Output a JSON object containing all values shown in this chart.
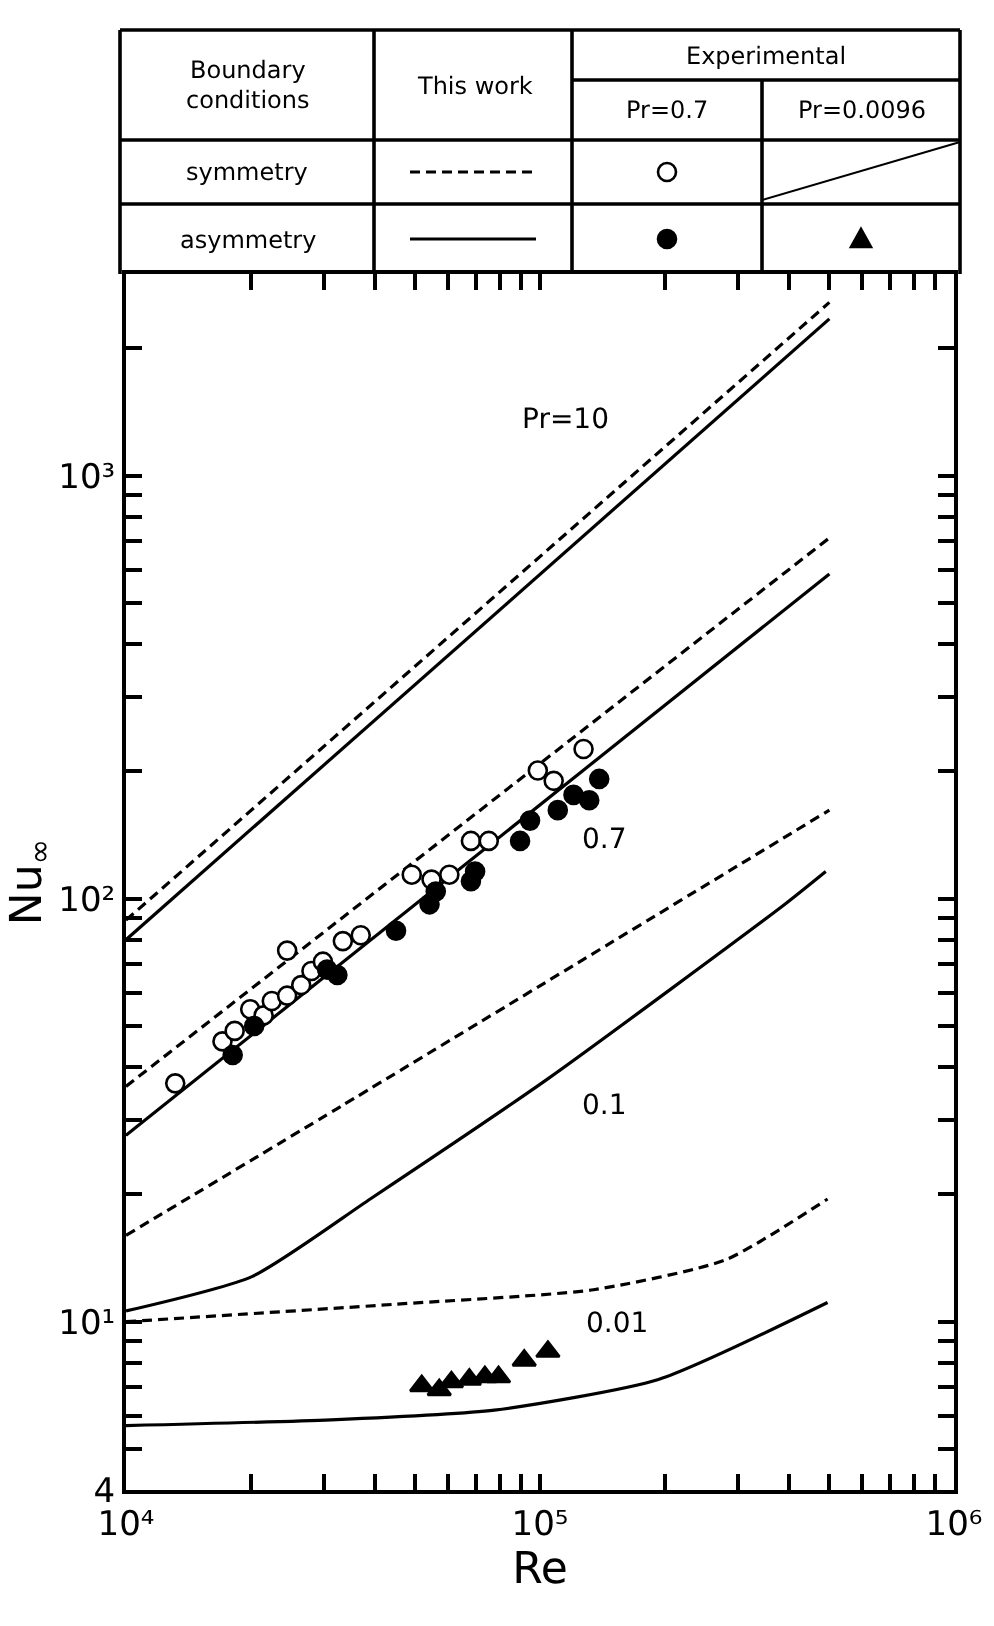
{
  "chart_data": {
    "type": "line",
    "xlabel": "Re",
    "ylabel": "Nu$_{∞}$",
    "log": "xy",
    "xlim": [
      10000,
      1000000
    ],
    "ylim": [
      4,
      3000
    ],
    "xticks": [
      {
        "value": 10000,
        "label": "10⁴"
      },
      {
        "value": 20000,
        "label": null
      },
      {
        "value": 30000,
        "label": null
      },
      {
        "value": 40000,
        "label": null
      },
      {
        "value": 50000,
        "label": null
      },
      {
        "value": 60000,
        "label": null
      },
      {
        "value": 70000,
        "label": null
      },
      {
        "value": 80000,
        "label": null
      },
      {
        "value": 90000,
        "label": null
      },
      {
        "value": 100000,
        "label": "10⁵"
      },
      {
        "value": 200000,
        "label": null
      },
      {
        "value": 300000,
        "label": null
      },
      {
        "value": 400000,
        "label": null
      },
      {
        "value": 500000,
        "label": null
      },
      {
        "value": 600000,
        "label": null
      },
      {
        "value": 700000,
        "label": null
      },
      {
        "value": 800000,
        "label": null
      },
      {
        "value": 900000,
        "label": null
      },
      {
        "value": 1000000,
        "label": "10⁶"
      }
    ],
    "yticks": [
      4,
      {
        "value": 5,
        "label": null
      },
      {
        "value": 6,
        "label": null
      },
      {
        "value": 7,
        "label": null
      },
      {
        "value": 8,
        "label": null
      },
      {
        "value": 9,
        "label": null
      },
      {
        "value": 10,
        "label": "10¹"
      },
      {
        "value": 20,
        "label": null
      },
      {
        "value": 30,
        "label": null
      },
      {
        "value": 40,
        "label": null
      },
      {
        "value": 50,
        "label": null
      },
      {
        "value": 60,
        "label": null
      },
      {
        "value": 70,
        "label": null
      },
      {
        "value": 80,
        "label": null
      },
      {
        "value": 90,
        "label": null
      },
      {
        "value": 100,
        "label": "10²"
      },
      {
        "value": 200,
        "label": null
      },
      {
        "value": 300,
        "label": null
      },
      {
        "value": 400,
        "label": null
      },
      {
        "value": 500,
        "label": null
      },
      {
        "value": 600,
        "label": null
      },
      {
        "value": 700,
        "label": null
      },
      {
        "value": 800,
        "label": null
      },
      {
        "value": 900,
        "label": null
      },
      {
        "value": 1000,
        "label": "10³"
      },
      {
        "value": 2000,
        "label": null
      }
    ],
    "series": [
      {
        "line_style": "dashed",
        "marker": "none",
        "color": "#000000",
        "x": [
          10000,
          500000
        ],
        "values": [
          89,
          2570
        ]
      },
      {
        "line_style": "solid",
        "marker": "none",
        "color": "#000000",
        "x": [
          10000,
          500000
        ],
        "values": [
          80,
          2350
        ]
      },
      {
        "line_style": "dashed",
        "marker": "none",
        "color": "#000000",
        "x": [
          10000,
          500000
        ],
        "values": [
          36,
          713
        ]
      },
      {
        "line_style": "solid",
        "marker": "none",
        "color": "#000000",
        "x": [
          10000,
          500000
        ],
        "values": [
          27.6,
          586
        ]
      },
      {
        "line_style": "dashed",
        "marker": "none",
        "color": "#000000",
        "x": [
          10000,
          33400,
          500000
        ],
        "values": [
          16,
          32.5,
          162
        ]
      },
      {
        "line_style": "solid",
        "marker": "none",
        "color": "#000000",
        "x": [
          10000,
          20200,
          38900,
          104000,
          389000,
          490000
        ],
        "values": [
          10.6,
          12.8,
          19.5,
          37.4,
          96.8,
          116
        ]
      },
      {
        "line_style": "dashed",
        "marker": "none",
        "color": "#000000",
        "x": [
          10000,
          44900,
          134600,
          280500,
          495000
        ],
        "values": [
          10,
          11,
          11.9,
          14,
          19.5
        ]
      },
      {
        "line_style": "solid",
        "marker": "none",
        "color": "#000000",
        "x": [
          10000,
          31300,
          77600,
          193200,
          495000
        ],
        "values": [
          5.68,
          5.86,
          6.18,
          7.3,
          11.1
        ]
      },
      {
        "type": "scatter",
        "marker": "circle",
        "color": "#ffffff",
        "x": [
          13150,
          17100,
          18300,
          19950,
          21500,
          22500,
          24500,
          24500,
          26500,
          28050,
          29900,
          33400,
          36900,
          49000,
          54700,
          60400,
          68100,
          75200,
          98800,
          107900,
          127400
        ],
        "values": [
          36.6,
          46,
          48.7,
          54.8,
          53,
          57.3,
          59,
          75.4,
          62.5,
          67.5,
          71,
          79.4,
          82,
          114,
          111,
          114,
          137,
          137,
          201,
          190,
          226
        ]
      },
      {
        "type": "scatter",
        "marker": "circle",
        "color": "#000000",
        "x": [
          18100,
          20400,
          30600,
          32400,
          44900,
          54100,
          56000,
          68100,
          69700,
          89500,
          94600,
          110400,
          120500,
          131500,
          139000
        ],
        "values": [
          42.7,
          50,
          68,
          66,
          84,
          97,
          104,
          110,
          116,
          137,
          153,
          162,
          176,
          171,
          192
        ]
      },
      {
        "type": "scatter",
        "marker": "triangle",
        "color": "#000000",
        "x": [
          51800,
          57100,
          61100,
          67500,
          73600,
          79400,
          91600,
          104500
        ],
        "values": [
          7.05,
          6.9,
          7.2,
          7.3,
          7.4,
          7.4,
          8.1,
          8.5
        ]
      }
    ],
    "annotations": [
      "Boundary",
      "conditions",
      "This work",
      "Experimental",
      "Pr=0.7",
      "Pr=0.0096",
      "symmetry",
      "asymmetry",
      "Pr=10",
      "0.7",
      "0.1",
      "0.01"
    ]
  }
}
